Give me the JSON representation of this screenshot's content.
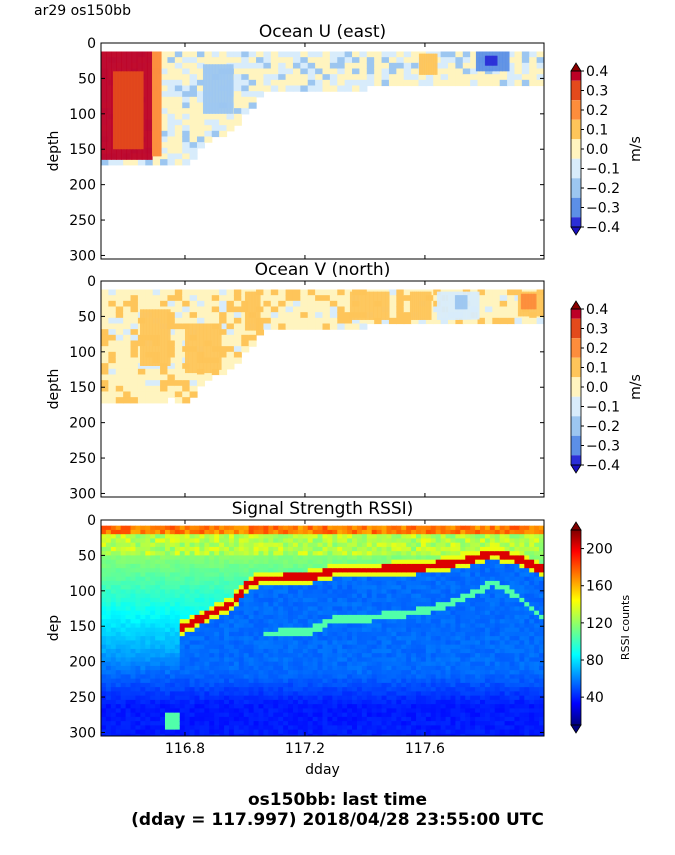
{
  "header": {
    "label": "ar29 os150bb"
  },
  "footer": {
    "line1": "os150bb: last time",
    "line2": "(dday = 117.997) 2018/04/28 23:55:00 UTC"
  },
  "chart_data": [
    {
      "type": "heatmap",
      "title": "Ocean U (east)",
      "xlabel": "",
      "ylabel": "depth",
      "xlim": [
        116.52,
        117.997
      ],
      "ylim": [
        305,
        0
      ],
      "y_ticks": [
        "0",
        "50",
        "100",
        "150",
        "200",
        "250",
        "300"
      ],
      "x_ticks": [
        116.8,
        117.2,
        117.6
      ],
      "show_x_tick_labels": false,
      "colorbar": {
        "label": "m/s",
        "ticks": [
          "0.4",
          "0.3",
          "0.2",
          "0.1",
          "0.0",
          "−0.1",
          "−0.2",
          "−0.3",
          "−0.4"
        ],
        "colors": [
          "#bd0026",
          "#e34a1c",
          "#fd8d3c",
          "#fec55a",
          "#fff4bf",
          "#d8ecfb",
          "#9cc6f0",
          "#5c8fe6",
          "#2b2fd8"
        ]
      },
      "coverage_bottom_depth": [
        {
          "x": 116.52,
          "depth": 170
        },
        {
          "x": 116.7,
          "depth": 170
        },
        {
          "x": 116.76,
          "depth": 165
        },
        {
          "x": 116.78,
          "depth": 175
        },
        {
          "x": 116.85,
          "depth": 140
        },
        {
          "x": 116.95,
          "depth": 115
        },
        {
          "x": 117.02,
          "depth": 85
        },
        {
          "x": 117.05,
          "depth": 68
        },
        {
          "x": 117.2,
          "depth": 65
        },
        {
          "x": 117.5,
          "depth": 57
        },
        {
          "x": 117.997,
          "depth": 52
        }
      ],
      "features": [
        {
          "x0": 116.52,
          "x1": 116.69,
          "d0": 12,
          "d1": 165,
          "value": 0.4
        },
        {
          "x0": 116.56,
          "x1": 116.66,
          "d0": 40,
          "d1": 150,
          "value": 0.3
        },
        {
          "x0": 116.69,
          "x1": 116.72,
          "d0": 12,
          "d1": 160,
          "value": 0.2
        },
        {
          "x0": 116.86,
          "x1": 116.96,
          "d0": 30,
          "d1": 100,
          "value": -0.2
        },
        {
          "x0": 117.58,
          "x1": 117.64,
          "d0": 15,
          "d1": 45,
          "value": 0.1
        },
        {
          "x0": 117.77,
          "x1": 117.88,
          "d0": 12,
          "d1": 40,
          "value": -0.3
        },
        {
          "x0": 117.8,
          "x1": 117.84,
          "d0": 18,
          "d1": 32,
          "value": -0.4
        }
      ]
    },
    {
      "type": "heatmap",
      "title": "Ocean V (north)",
      "xlabel": "",
      "ylabel": "depth",
      "xlim": [
        116.52,
        117.997
      ],
      "ylim": [
        305,
        0
      ],
      "y_ticks": [
        "0",
        "50",
        "100",
        "150",
        "200",
        "250",
        "300"
      ],
      "x_ticks": [
        116.8,
        117.2,
        117.6
      ],
      "show_x_tick_labels": false,
      "colorbar": {
        "label": "m/s",
        "ticks": [
          "0.4",
          "0.3",
          "0.2",
          "0.1",
          "0.0",
          "−0.1",
          "−0.2",
          "−0.3",
          "−0.4"
        ],
        "colors": [
          "#bd0026",
          "#e34a1c",
          "#fd8d3c",
          "#fec55a",
          "#fff4bf",
          "#d8ecfb",
          "#9cc6f0",
          "#5c8fe6",
          "#2b2fd8"
        ]
      },
      "coverage_bottom_depth": [
        {
          "x": 116.52,
          "depth": 165
        },
        {
          "x": 116.7,
          "depth": 168
        },
        {
          "x": 116.76,
          "depth": 160
        },
        {
          "x": 116.78,
          "depth": 175
        },
        {
          "x": 116.85,
          "depth": 140
        },
        {
          "x": 116.95,
          "depth": 115
        },
        {
          "x": 117.02,
          "depth": 85
        },
        {
          "x": 117.05,
          "depth": 68
        },
        {
          "x": 117.2,
          "depth": 65
        },
        {
          "x": 117.5,
          "depth": 57
        },
        {
          "x": 117.997,
          "depth": 52
        }
      ],
      "features": [
        {
          "x0": 116.65,
          "x1": 116.75,
          "d0": 40,
          "d1": 120,
          "value": 0.1
        },
        {
          "x0": 116.8,
          "x1": 116.92,
          "d0": 60,
          "d1": 130,
          "value": 0.1
        },
        {
          "x0": 117.0,
          "x1": 117.05,
          "d0": 15,
          "d1": 70,
          "value": 0.1
        },
        {
          "x0": 117.35,
          "x1": 117.48,
          "d0": 15,
          "d1": 55,
          "value": 0.1
        },
        {
          "x0": 117.55,
          "x1": 117.62,
          "d0": 15,
          "d1": 55,
          "value": 0.1
        },
        {
          "x0": 117.64,
          "x1": 117.78,
          "d0": 15,
          "d1": 55,
          "value": -0.1
        },
        {
          "x0": 117.7,
          "x1": 117.74,
          "d0": 20,
          "d1": 40,
          "value": -0.2
        },
        {
          "x0": 117.91,
          "x1": 117.997,
          "d0": 15,
          "d1": 50,
          "value": 0.1
        },
        {
          "x0": 117.92,
          "x1": 117.97,
          "d0": 18,
          "d1": 40,
          "value": 0.2
        }
      ]
    },
    {
      "type": "heatmap",
      "title": "Signal Strength RSSI)",
      "xlabel": "dday",
      "ylabel": "dep",
      "xlim": [
        116.52,
        117.997
      ],
      "ylim": [
        305,
        0
      ],
      "y_ticks": [
        "0",
        "50",
        "100",
        "150",
        "200",
        "250",
        "300"
      ],
      "x_ticks": [
        116.8,
        117.2,
        117.6
      ],
      "x_tick_labels": [
        "116.8",
        "117.2",
        "117.6"
      ],
      "colorbar": {
        "label": "RSSI counts",
        "ticks": [
          "200",
          "160",
          "120",
          "80",
          "40"
        ],
        "range": [
          10,
          220
        ]
      },
      "bottom_echo_depth": [
        {
          "x": 116.78,
          "depth": 150
        },
        {
          "x": 116.85,
          "depth": 135
        },
        {
          "x": 116.95,
          "depth": 115
        },
        {
          "x": 117.0,
          "depth": 88
        },
        {
          "x": 117.05,
          "depth": 80
        },
        {
          "x": 117.2,
          "depth": 78
        },
        {
          "x": 117.3,
          "depth": 68
        },
        {
          "x": 117.4,
          "depth": 68
        },
        {
          "x": 117.6,
          "depth": 63
        },
        {
          "x": 117.72,
          "depth": 55
        },
        {
          "x": 117.82,
          "depth": 43
        },
        {
          "x": 117.9,
          "depth": 52
        },
        {
          "x": 117.997,
          "depth": 70
        }
      ],
      "second_echo_depth": [
        {
          "x": 117.05,
          "depth": 158
        },
        {
          "x": 117.2,
          "depth": 155
        },
        {
          "x": 117.3,
          "depth": 136
        },
        {
          "x": 117.4,
          "depth": 136
        },
        {
          "x": 117.6,
          "depth": 125
        },
        {
          "x": 117.72,
          "depth": 108
        },
        {
          "x": 117.82,
          "depth": 85
        },
        {
          "x": 117.9,
          "depth": 104
        },
        {
          "x": 117.997,
          "depth": 140
        }
      ]
    }
  ]
}
